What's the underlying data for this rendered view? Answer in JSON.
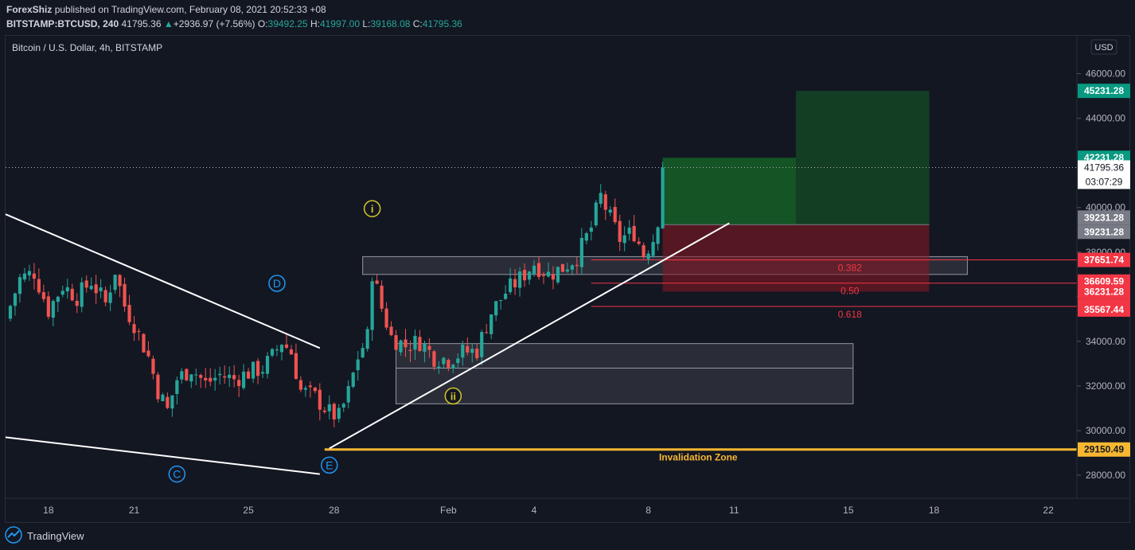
{
  "header": {
    "author": "ForexShiz",
    "published_text": "published on TradingView.com, February 08, 2021 20:52:33 +08",
    "symbol": "BITSTAMP:BTCUSD, 240",
    "last": "41795.36",
    "change": "+2936.97 (+7.56%)",
    "o_label": "O:",
    "o": "39492.25",
    "h_label": "H:",
    "h": "41997.00",
    "l_label": "L:",
    "l": "39168.08",
    "c_label": "C:",
    "c": "41795.36"
  },
  "chart_title": "Bitcoin / U.S. Dollar, 4h, BITSTAMP",
  "currency_button": "USD",
  "footer": {
    "brand": "TradingView"
  },
  "colors": {
    "background": "#131722",
    "up": "#26a69a",
    "down": "#ef5350",
    "target": "#0c6e19",
    "stop": "#7a1a22",
    "invalidation": "#f7b731",
    "pattern_label": "#2196f3",
    "wave_label": "#d4c628"
  },
  "chart_data": {
    "type": "candlestick",
    "timeframe": "4h",
    "ylim": [
      27000,
      47700
    ],
    "y_ticks": [
      28000,
      30000,
      32000,
      34000,
      36000,
      38000,
      40000,
      44000,
      46000
    ],
    "x_ticks": [
      {
        "label": "18",
        "date": "2021-01-18"
      },
      {
        "label": "21",
        "date": "2021-01-21"
      },
      {
        "label": "25",
        "date": "2021-01-25"
      },
      {
        "label": "28",
        "date": "2021-01-28"
      },
      {
        "label": "Feb",
        "date": "2021-02-01"
      },
      {
        "label": "4",
        "date": "2021-02-04"
      },
      {
        "label": "8",
        "date": "2021-02-08"
      },
      {
        "label": "11",
        "date": "2021-02-11"
      },
      {
        "label": "15",
        "date": "2021-02-15"
      },
      {
        "label": "18",
        "date": "2021-02-18"
      },
      {
        "label": "22",
        "date": "2021-02-22"
      }
    ],
    "x_range": [
      "2021-01-16T12:00",
      "2021-02-23T00:00"
    ],
    "close_path": [
      {
        "t": "2021-01-16T12:00",
        "price": 35000
      },
      {
        "t": "2021-01-17T00:00",
        "price": 36800
      },
      {
        "t": "2021-01-17T12:00",
        "price": 37100
      },
      {
        "t": "2021-01-18T00:00",
        "price": 35400
      },
      {
        "t": "2021-01-18T12:00",
        "price": 36500
      },
      {
        "t": "2021-01-19T00:00",
        "price": 36000
      },
      {
        "t": "2021-01-19T12:00",
        "price": 36700
      },
      {
        "t": "2021-01-20T00:00",
        "price": 35700
      },
      {
        "t": "2021-01-20T08:00",
        "price": 37200
      },
      {
        "t": "2021-01-20T16:00",
        "price": 35600
      },
      {
        "t": "2021-01-21T00:00",
        "price": 34800
      },
      {
        "t": "2021-01-21T12:00",
        "price": 33300
      },
      {
        "t": "2021-01-21T20:00",
        "price": 31800
      },
      {
        "t": "2021-01-22T04:00",
        "price": 30900
      },
      {
        "t": "2021-01-22T12:00",
        "price": 32300
      },
      {
        "t": "2021-01-23T00:00",
        "price": 32800
      },
      {
        "t": "2021-01-23T12:00",
        "price": 32100
      },
      {
        "t": "2021-01-24T00:00",
        "price": 32500
      },
      {
        "t": "2021-01-24T12:00",
        "price": 32300
      },
      {
        "t": "2021-01-25T00:00",
        "price": 32600
      },
      {
        "t": "2021-01-25T12:00",
        "price": 32800
      },
      {
        "t": "2021-01-25T20:00",
        "price": 33300
      },
      {
        "t": "2021-01-26T04:00",
        "price": 34000
      },
      {
        "t": "2021-01-26T12:00",
        "price": 33500
      },
      {
        "t": "2021-01-26T20:00",
        "price": 31800
      },
      {
        "t": "2021-01-27T08:00",
        "price": 31500
      },
      {
        "t": "2021-01-27T20:00",
        "price": 30800
      },
      {
        "t": "2021-01-28T04:00",
        "price": 30600
      },
      {
        "t": "2021-01-28T12:00",
        "price": 31700
      },
      {
        "t": "2021-01-28T20:00",
        "price": 33300
      },
      {
        "t": "2021-01-29T04:00",
        "price": 34200
      },
      {
        "t": "2021-01-29T08:00",
        "price": 37100
      },
      {
        "t": "2021-01-29T16:00",
        "price": 35500
      },
      {
        "t": "2021-01-30T00:00",
        "price": 34200
      },
      {
        "t": "2021-01-30T12:00",
        "price": 33800
      },
      {
        "t": "2021-01-31T00:00",
        "price": 34000
      },
      {
        "t": "2021-01-31T12:00",
        "price": 33300
      },
      {
        "t": "2021-02-01T00:00",
        "price": 33200
      },
      {
        "t": "2021-02-01T12:00",
        "price": 33500
      },
      {
        "t": "2021-02-02T00:00",
        "price": 33600
      },
      {
        "t": "2021-02-02T12:00",
        "price": 35300
      },
      {
        "t": "2021-02-03T00:00",
        "price": 36200
      },
      {
        "t": "2021-02-03T12:00",
        "price": 36800
      },
      {
        "t": "2021-02-04T00:00",
        "price": 37500
      },
      {
        "t": "2021-02-04T12:00",
        "price": 37000
      },
      {
        "t": "2021-02-05T00:00",
        "price": 37300
      },
      {
        "t": "2021-02-05T12:00",
        "price": 37800
      },
      {
        "t": "2021-02-06T00:00",
        "price": 39100
      },
      {
        "t": "2021-02-06T08:00",
        "price": 40500
      },
      {
        "t": "2021-02-06T16:00",
        "price": 39500
      },
      {
        "t": "2021-02-07T00:00",
        "price": 38600
      },
      {
        "t": "2021-02-07T12:00",
        "price": 38900
      },
      {
        "t": "2021-02-07T20:00",
        "price": 37900
      },
      {
        "t": "2021-02-08T04:00",
        "price": 38600
      },
      {
        "t": "2021-02-08T08:00",
        "price": 39500
      },
      {
        "t": "2021-02-08T12:00",
        "price": 41795.36
      }
    ],
    "price_labels": [
      {
        "value": 45231.28,
        "text": "45231.28",
        "color": "#089981"
      },
      {
        "value": 42231.28,
        "text": "42231.28",
        "color": "#089981"
      },
      {
        "value": 39231.28,
        "text": "39231.28",
        "color": "#787b86"
      },
      {
        "value": 37651.74,
        "text": "37651.74",
        "color": "#f23645"
      },
      {
        "value": 36609.59,
        "text": "36609.59",
        "color": "#f23645"
      },
      {
        "value": 36231.28,
        "text": "36231.28",
        "color": "#f23645"
      },
      {
        "value": 35567.44,
        "text": "35567.44",
        "color": "#f23645"
      },
      {
        "value": 29150.49,
        "text": "29150.49",
        "color": "#f7b731"
      }
    ],
    "last_price_label": {
      "value": 41795.36,
      "text": "41795.36",
      "countdown": "03:07:29"
    },
    "fib_levels": [
      {
        "label": "0.382",
        "price": 37651.74
      },
      {
        "label": "0.50",
        "price": 36609.59
      },
      {
        "label": "0.618",
        "price": 35567.44
      }
    ],
    "invalidation": {
      "price": 29150.49,
      "label": "Invalidation Zone"
    },
    "annotations": {
      "wave_labels": [
        {
          "text": "i",
          "t": "2021-01-29T08:00",
          "price": 39950
        },
        {
          "text": "ii",
          "t": "2021-02-01T04:00",
          "price": 31550
        }
      ],
      "pattern_labels": [
        {
          "text": "C",
          "t": "2021-01-22T12:00",
          "price": 28050
        },
        {
          "text": "D",
          "t": "2021-01-26T00:00",
          "price": 36600
        },
        {
          "text": "E",
          "t": "2021-01-27T20:00",
          "price": 28450
        }
      ],
      "zones": [
        {
          "name": "supply-zone",
          "t0": "2021-01-29T00:00",
          "t1": "2021-02-19T04:00",
          "p0": 37000,
          "p1": 37800
        },
        {
          "name": "demand-zone",
          "t0": "2021-01-30T04:00",
          "t1": "2021-02-15T04:00",
          "p0": 31200,
          "p1": 33900
        }
      ],
      "trendlines": [
        {
          "name": "upper-wedge-line",
          "t0": "2021-01-16T12:00",
          "p0": 39700,
          "t1": "2021-01-27T12:00",
          "p1": 33700
        },
        {
          "name": "lower-wedge-line",
          "t0": "2021-01-16T12:00",
          "p0": 29700,
          "t1": "2021-01-27T12:00",
          "p1": 28050
        },
        {
          "name": "rising-support-line",
          "t0": "2021-01-27T20:00",
          "p0": 29200,
          "t1": "2021-02-10T20:00",
          "p1": 39300
        }
      ],
      "position": {
        "entry": 39231.28,
        "stop": 36231.28,
        "target_1": 42231.28,
        "target_2": 45231.28,
        "t_start": "2021-02-08T12:00",
        "t_mid": "2021-02-13T04:00",
        "t_end": "2021-02-17T20:00"
      }
    }
  }
}
